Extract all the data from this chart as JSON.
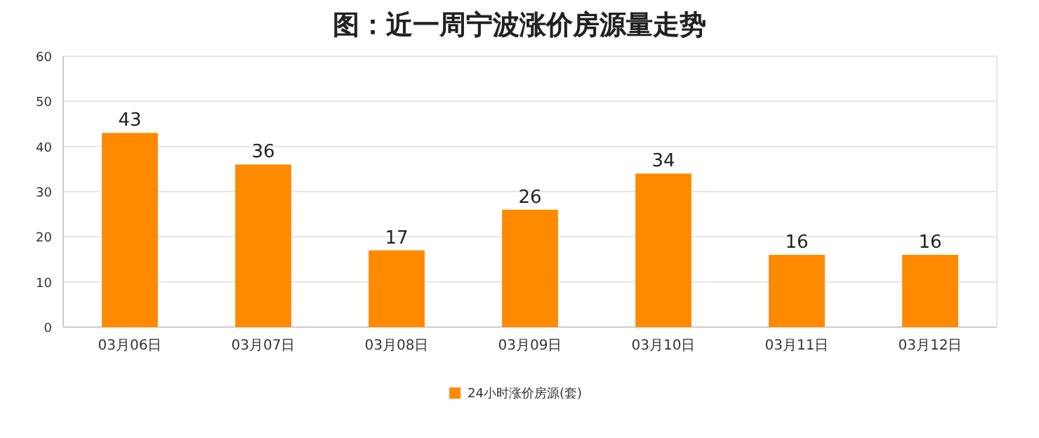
{
  "chart_data": {
    "type": "bar",
    "title": "图：近一周宁波涨价房源量走势",
    "categories": [
      "03月06日",
      "03月07日",
      "03月08日",
      "03月09日",
      "03月10日",
      "03月11日",
      "03月12日"
    ],
    "series": [
      {
        "name": "24小时涨价房源(套)",
        "color": "#ff8a00",
        "values": [
          43,
          36,
          17,
          26,
          34,
          16,
          16
        ]
      }
    ],
    "ylim": [
      0,
      60
    ],
    "yticks": [
      0,
      10,
      20,
      30,
      40,
      50,
      60
    ],
    "grid": "y",
    "legend": "bottom",
    "data_labels": true
  }
}
